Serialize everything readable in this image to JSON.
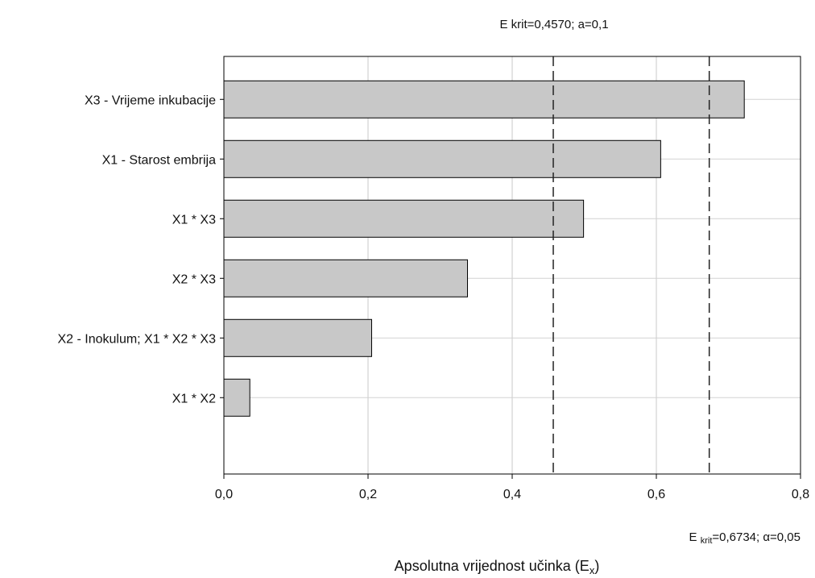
{
  "chart_data": {
    "type": "bar",
    "orientation": "horizontal",
    "categories": [
      "X3 - Vrijeme inkubacije",
      "X1 - Starost embrija",
      "X1 * X3",
      "X2 * X3",
      "X2 - Inokulum; X1 * X2 * X3",
      "X1 * X2"
    ],
    "values": [
      0.722,
      0.606,
      0.499,
      0.338,
      0.205,
      0.036
    ],
    "xlim": [
      0,
      0.8
    ],
    "xticks": [
      "0,0",
      "0,2",
      "0,4",
      "0,6",
      "0,8"
    ],
    "xtick_values": [
      0,
      0.2,
      0.4,
      0.6,
      0.8
    ],
    "xlabel_main": "Apsolutna vrijednost učinka (E",
    "xlabel_sub": "x",
    "xlabel_end": ")",
    "grid": true,
    "bar_color": "#c8c8c8",
    "thresholds": [
      {
        "value": 0.457,
        "label": "E krit=0,4570; a=0,1",
        "position": "top"
      },
      {
        "value": 0.6734,
        "label_main": "E ",
        "label_sub": "krit",
        "label_end": "=0,6734; α=0,05",
        "position": "bottom"
      }
    ]
  }
}
